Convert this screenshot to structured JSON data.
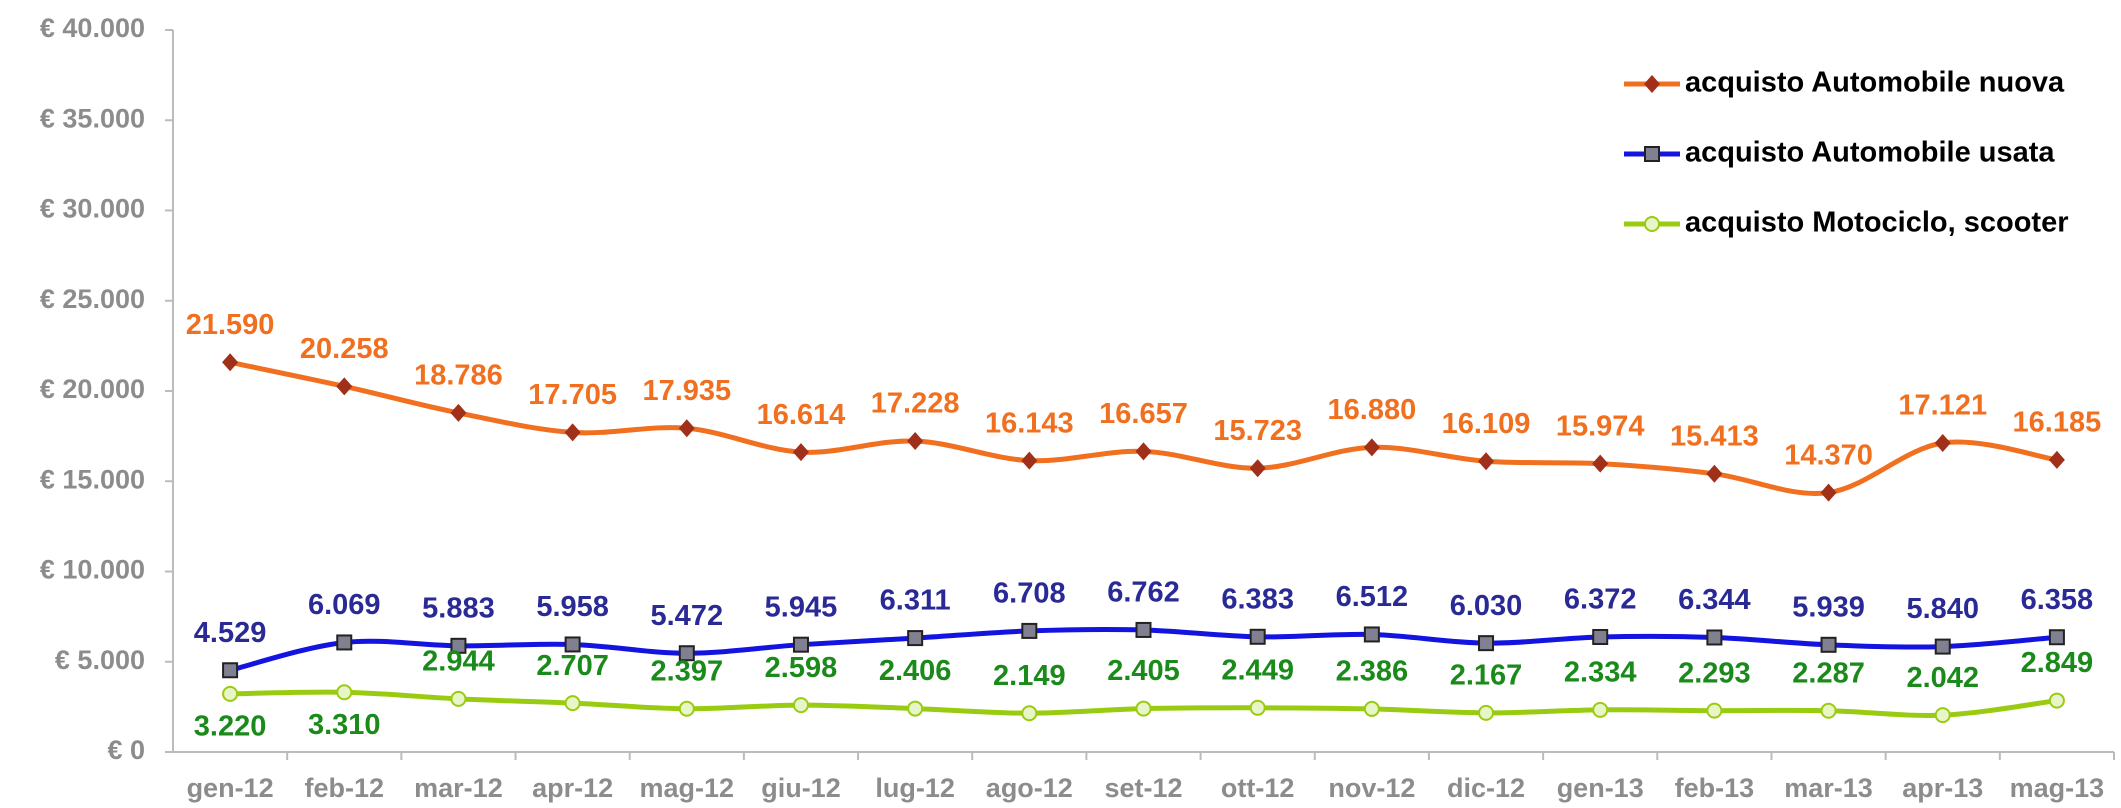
{
  "chart_data": {
    "type": "line",
    "categories": [
      "gen-12",
      "feb-12",
      "mar-12",
      "apr-12",
      "mag-12",
      "giu-12",
      "lug-12",
      "ago-12",
      "set-12",
      "ott-12",
      "nov-12",
      "dic-12",
      "gen-13",
      "feb-13",
      "mar-13",
      "apr-13",
      "mag-13"
    ],
    "series": [
      {
        "name": "acquisto Automobile nuova",
        "color": "#f07020",
        "marker_color": "#a0301a",
        "label_color": "#f07020",
        "values": [
          21590,
          20258,
          18786,
          17705,
          17935,
          16614,
          17228,
          16143,
          16657,
          15723,
          16880,
          16109,
          15974,
          15413,
          14370,
          17121,
          16185
        ],
        "value_labels": [
          "21.590",
          "20.258",
          "18.786",
          "17.705",
          "17.935",
          "16.614",
          "17.228",
          "16.143",
          "16.657",
          "15.723",
          "16.880",
          "16.109",
          "15.974",
          "15.413",
          "14.370",
          "17.121",
          "16.185"
        ]
      },
      {
        "name": "acquisto Automobile usata",
        "color": "#1414e0",
        "marker_color": "#808090",
        "label_color": "#2a2a96",
        "values": [
          4529,
          6069,
          5883,
          5958,
          5472,
          5945,
          6311,
          6708,
          6762,
          6383,
          6512,
          6030,
          6372,
          6344,
          5939,
          5840,
          6358
        ],
        "value_labels": [
          "4.529",
          "6.069",
          "5.883",
          "5.958",
          "5.472",
          "5.945",
          "6.311",
          "6.708",
          "6.762",
          "6.383",
          "6.512",
          "6.030",
          "6.372",
          "6.344",
          "5.939",
          "5.840",
          "6.358"
        ]
      },
      {
        "name": "acquisto Motociclo, scooter",
        "color": "#99cc11",
        "marker_color": "#e8f5c8",
        "label_color": "#1a8a1a",
        "values": [
          3220,
          3310,
          2944,
          2707,
          2397,
          2598,
          2406,
          2149,
          2405,
          2449,
          2386,
          2167,
          2334,
          2293,
          2287,
          2042,
          2849
        ],
        "value_labels": [
          "3.220",
          "3.310",
          "2.944",
          "2.707",
          "2.397",
          "2.598",
          "2.406",
          "2.149",
          "2.405",
          "2.449",
          "2.386",
          "2.167",
          "2.334",
          "2.293",
          "2.287",
          "2.042",
          "2.849"
        ]
      }
    ],
    "ylim": [
      0,
      40000
    ],
    "yticks": [
      {
        "value": 0,
        "label": "€ 0"
      },
      {
        "value": 5000,
        "label": "€ 5.000"
      },
      {
        "value": 10000,
        "label": "€ 10.000"
      },
      {
        "value": 15000,
        "label": "€ 15.000"
      },
      {
        "value": 20000,
        "label": "€ 20.000"
      },
      {
        "value": 25000,
        "label": "€ 25.000"
      },
      {
        "value": 30000,
        "label": "€ 30.000"
      },
      {
        "value": 35000,
        "label": "€ 35.000"
      },
      {
        "value": 40000,
        "label": "€ 40.000"
      }
    ],
    "grid": false,
    "legend": "top-right"
  }
}
